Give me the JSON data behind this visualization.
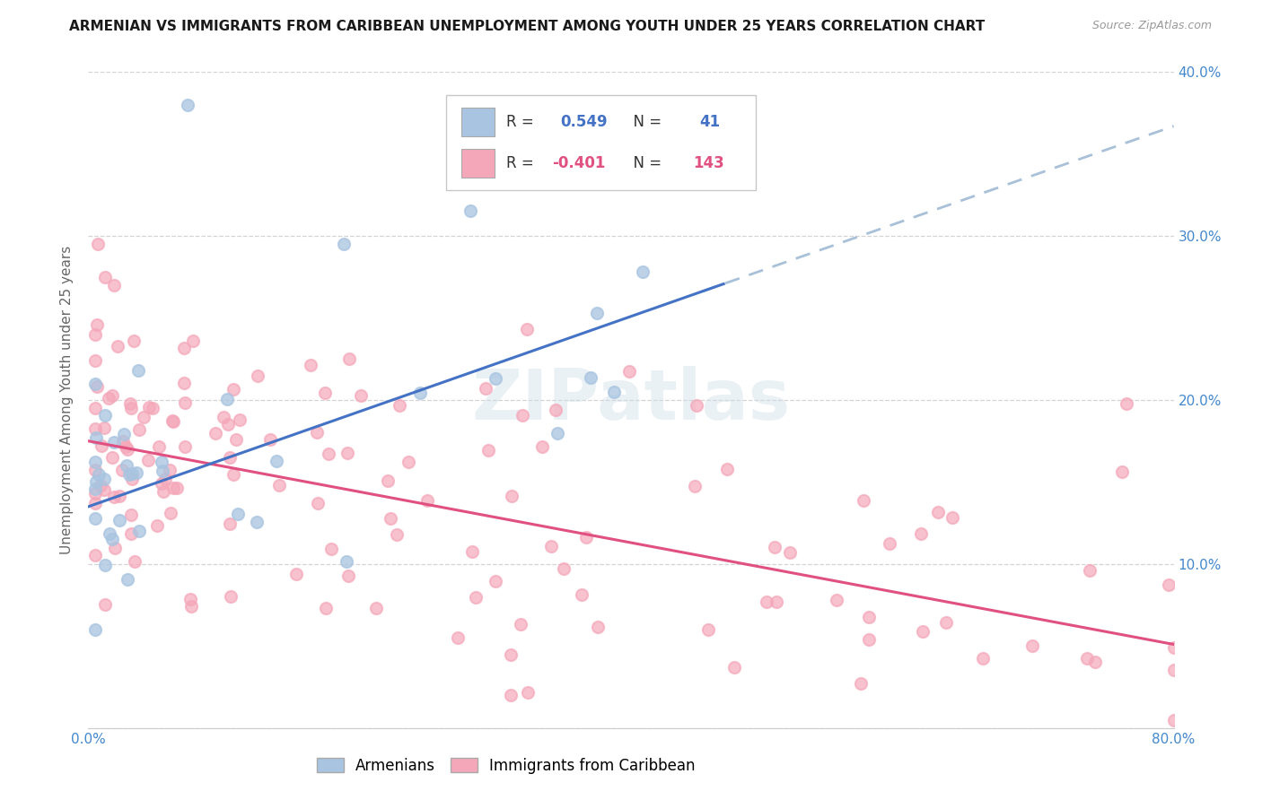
{
  "title": "ARMENIAN VS IMMIGRANTS FROM CARIBBEAN UNEMPLOYMENT AMONG YOUTH UNDER 25 YEARS CORRELATION CHART",
  "source": "Source: ZipAtlas.com",
  "ylabel": "Unemployment Among Youth under 25 years",
  "xlim": [
    0.0,
    0.8
  ],
  "ylim": [
    0.0,
    0.4
  ],
  "xticks": [
    0.0,
    0.1,
    0.2,
    0.3,
    0.4,
    0.5,
    0.6,
    0.7,
    0.8
  ],
  "yticks": [
    0.0,
    0.1,
    0.2,
    0.3,
    0.4
  ],
  "xticklabels": [
    "0.0%",
    "",
    "",
    "",
    "",
    "",
    "",
    "",
    "80.0%"
  ],
  "yticklabels_right": [
    "",
    "10.0%",
    "20.0%",
    "30.0%",
    "40.0%"
  ],
  "legend_r1_val": "0.549",
  "legend_r1_n": "41",
  "legend_r2_val": "-0.401",
  "legend_r2_n": "143",
  "watermark": "ZIPatlas",
  "armenian_dot_color": "#a8c4e0",
  "caribbean_dot_color": "#f4a7b9",
  "armenian_line_color": "#4472c4",
  "caribbean_line_color": "#e05080",
  "dashed_line_color": "#a8c0d8",
  "background_color": "#ffffff",
  "grid_color": "#d4d4d4",
  "legend_r1_color": "#4472c4",
  "legend_r2_color": "#e05080",
  "right_tick_color": "#4488cc",
  "title_color": "#1a1a1a",
  "source_color": "#999999",
  "ylabel_color": "#666666"
}
